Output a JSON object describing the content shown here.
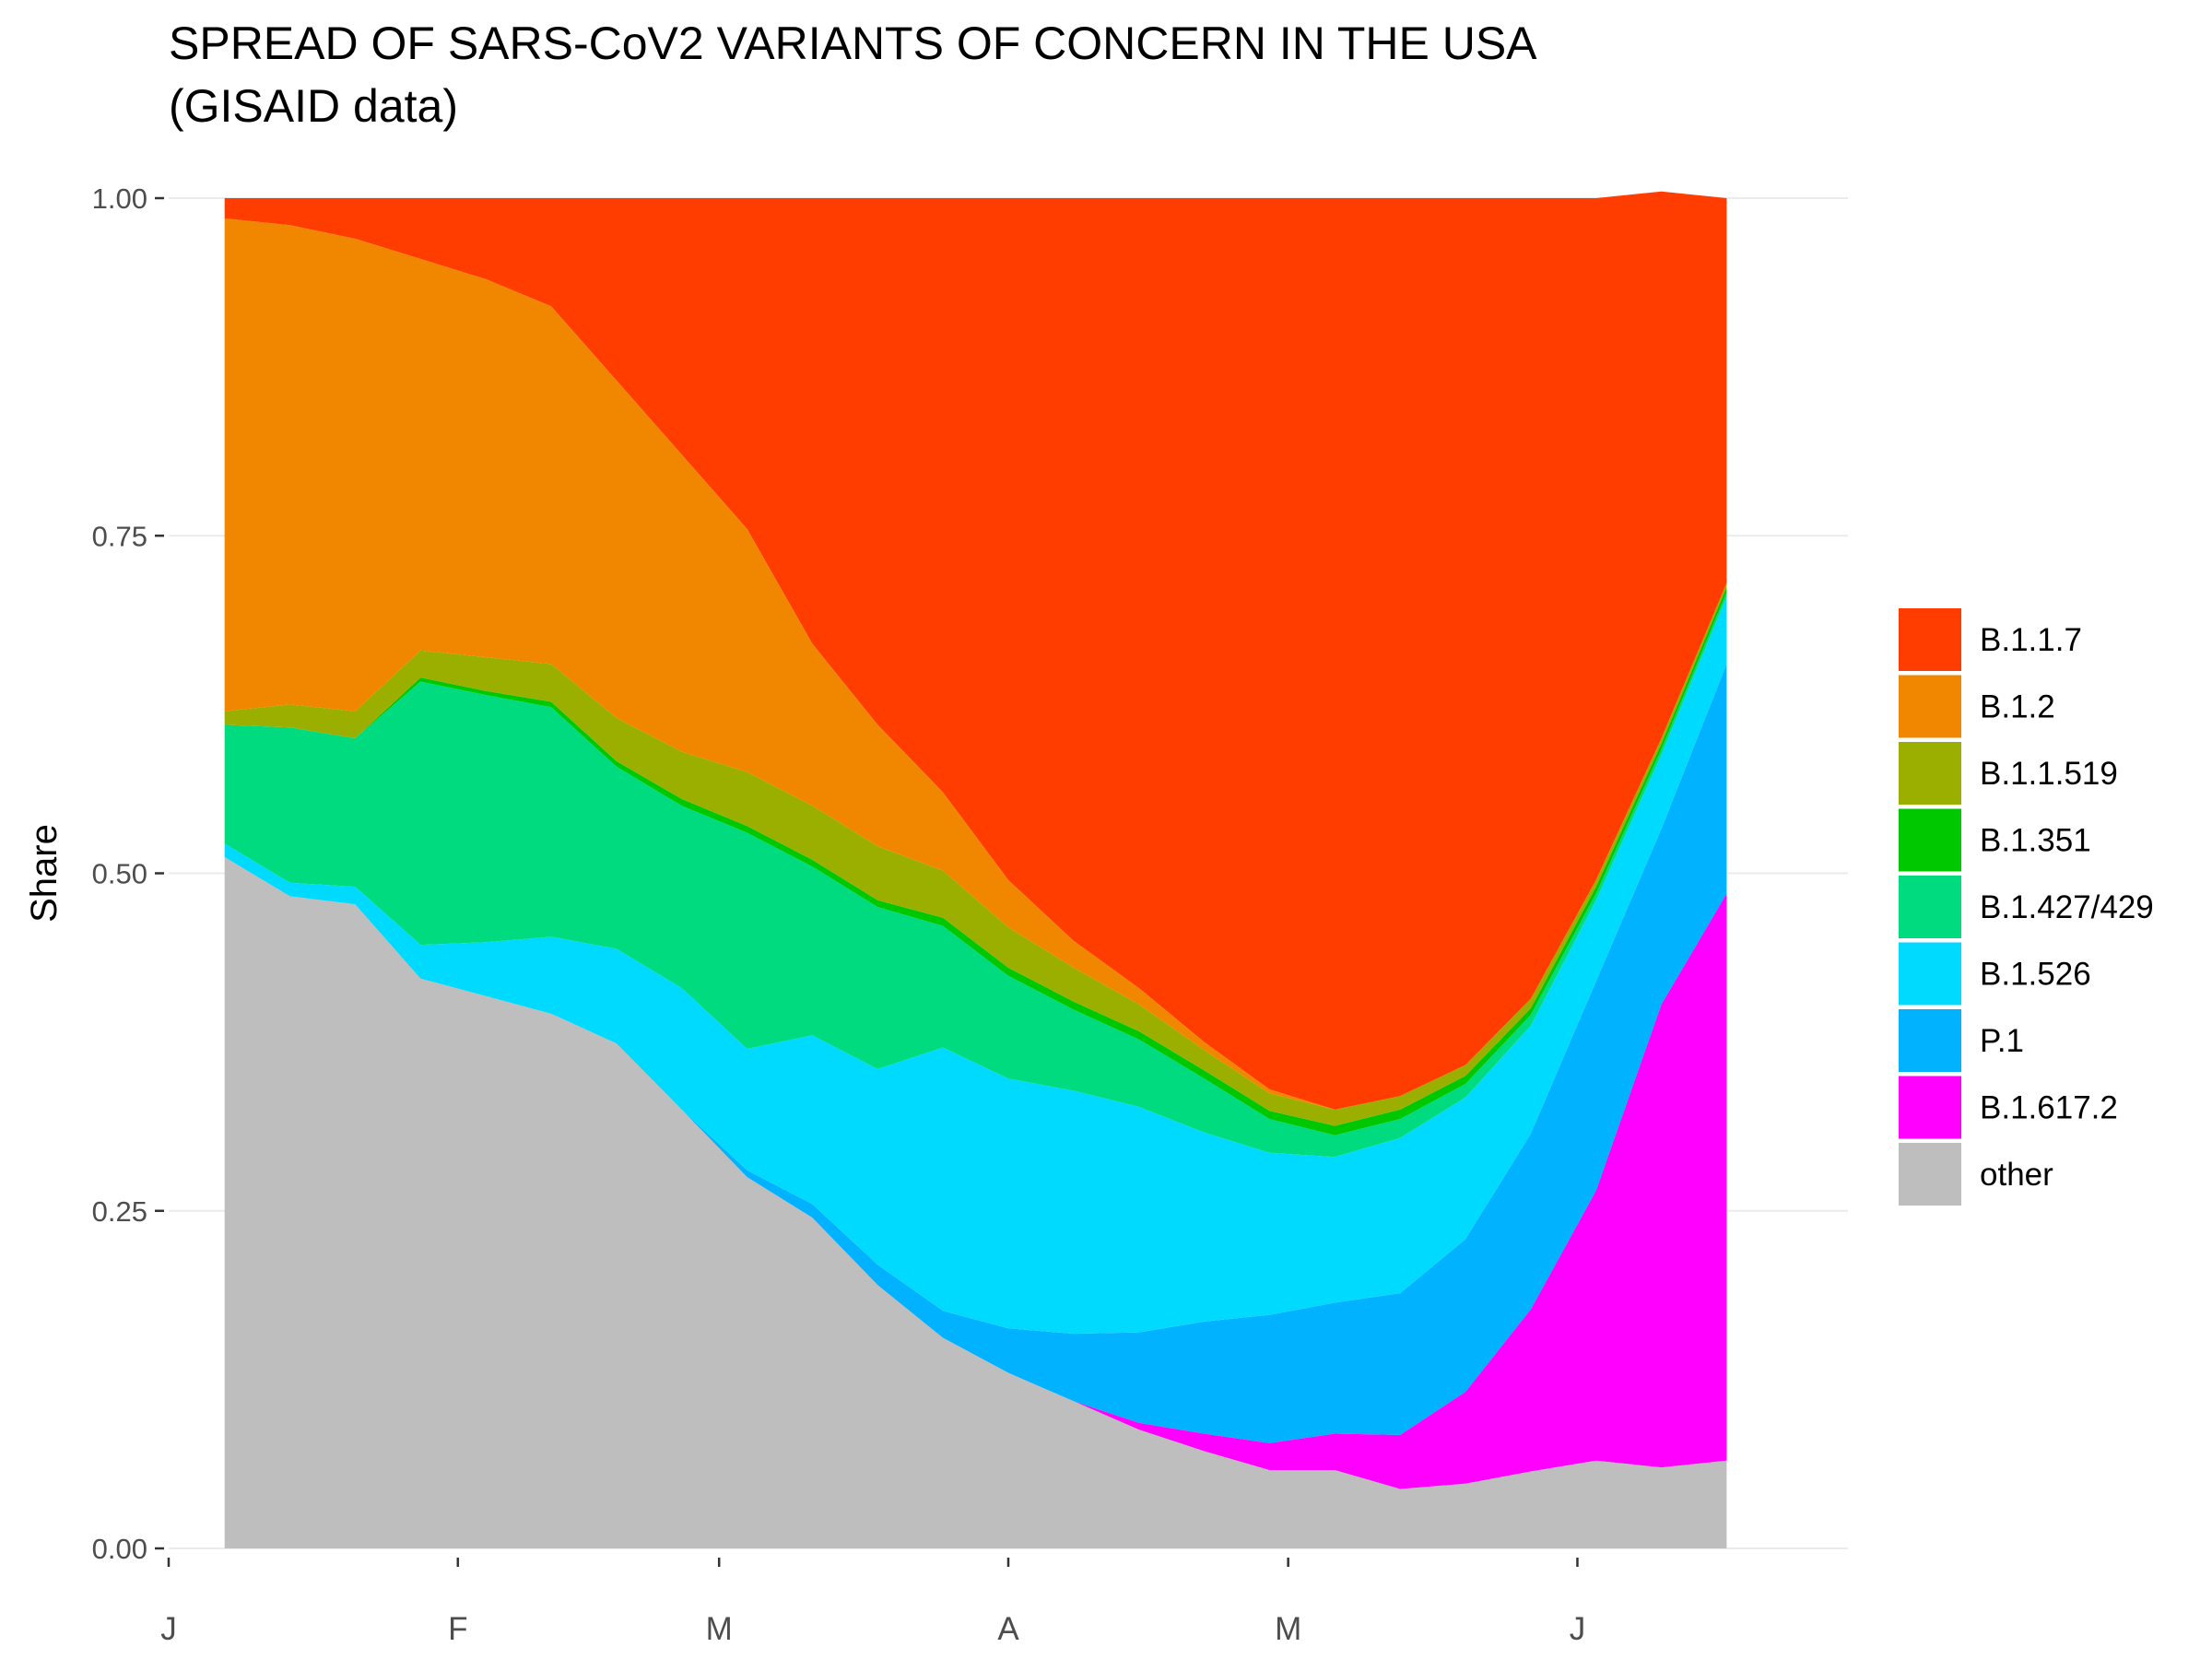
{
  "chart_data": {
    "type": "area",
    "stacked": true,
    "title": "SPREAD OF SARS-CoV2 VARIANTS OF CONCERN IN THE USA",
    "subtitle": "(GISAID data)",
    "xlabel": "",
    "ylabel": "Share",
    "xlim": [
      "2021-01-01",
      "2021-06-30"
    ],
    "ylim": [
      0,
      1
    ],
    "grid": true,
    "legend_position": "right",
    "x_ticks": [
      {
        "date": "2021-01-01",
        "label": "J"
      },
      {
        "date": "2021-02-01",
        "label": "F"
      },
      {
        "date": "2021-03-01",
        "label": "M"
      },
      {
        "date": "2021-04-01",
        "label": "A"
      },
      {
        "date": "2021-05-01",
        "label": "M"
      },
      {
        "date": "2021-06-01",
        "label": "J"
      }
    ],
    "y_ticks": [
      {
        "value": 0,
        "label": "0.00"
      },
      {
        "value": 0.25,
        "label": "0.25"
      },
      {
        "value": 0.5,
        "label": "0.50"
      },
      {
        "value": 0.75,
        "label": "0.75"
      },
      {
        "value": 1,
        "label": "1.00"
      }
    ],
    "x": [
      "2021-01-07",
      "2021-01-14",
      "2021-01-21",
      "2021-01-28",
      "2021-02-04",
      "2021-02-11",
      "2021-02-18",
      "2021-02-25",
      "2021-03-04",
      "2021-03-11",
      "2021-03-18",
      "2021-03-25",
      "2021-04-01",
      "2021-04-08",
      "2021-04-15",
      "2021-04-22",
      "2021-04-29",
      "2021-05-06",
      "2021-05-13",
      "2021-05-20",
      "2021-05-27",
      "2021-06-03",
      "2021-06-10",
      "2021-06-17"
    ],
    "stack_order": [
      "other",
      "B.1.617.2",
      "P.1",
      "B.1.526",
      "B.1.427/429",
      "B.1.351",
      "B.1.1.519",
      "B.1.2",
      "B.1.1.7"
    ],
    "series": [
      {
        "name": "B.1.1.7",
        "color": "#FF3D00",
        "values": [
          0.015,
          0.02,
          0.03,
          0.045,
          0.06,
          0.08,
          0.135,
          0.19,
          0.245,
          0.33,
          0.39,
          0.44,
          0.505,
          0.55,
          0.585,
          0.625,
          0.66,
          0.675,
          0.665,
          0.642,
          0.593,
          0.505,
          0.405,
          0.285
        ]
      },
      {
        "name": "B.1.2",
        "color": "#F18700",
        "values": [
          0.365,
          0.355,
          0.35,
          0.29,
          0.28,
          0.265,
          0.25,
          0.22,
          0.18,
          0.12,
          0.09,
          0.058,
          0.035,
          0.02,
          0.012,
          0.006,
          0.003,
          0,
          0,
          0,
          0,
          0,
          0,
          0
        ]
      },
      {
        "name": "B.1.1.519",
        "color": "#9AAF00",
        "values": [
          0.01,
          0.017,
          0.02,
          0.02,
          0.025,
          0.028,
          0.032,
          0.035,
          0.04,
          0.04,
          0.04,
          0.035,
          0.03,
          0.025,
          0.02,
          0.015,
          0.013,
          0.012,
          0.01,
          0.008,
          0.007,
          0.005,
          0.004,
          0.003
        ]
      },
      {
        "name": "B.1.351",
        "color": "#00C800",
        "values": [
          0,
          0,
          0,
          0.003,
          0.003,
          0.004,
          0.004,
          0.005,
          0.005,
          0.005,
          0.005,
          0.006,
          0.006,
          0.006,
          0.006,
          0.006,
          0.006,
          0.007,
          0.007,
          0.006,
          0.005,
          0.005,
          0.004,
          0.004
        ]
      },
      {
        "name": "B.1.427/429",
        "color": "#00DB80",
        "values": [
          0.088,
          0.115,
          0.11,
          0.195,
          0.183,
          0.17,
          0.135,
          0.135,
          0.16,
          0.125,
          0.12,
          0.09,
          0.076,
          0.06,
          0.05,
          0.04,
          0.025,
          0.016,
          0.014,
          0.01,
          0.008,
          0.005,
          0.004,
          0.003
        ]
      },
      {
        "name": "B.1.526",
        "color": "#00DAFF",
        "values": [
          0.01,
          0.01,
          0.013,
          0.025,
          0.04,
          0.057,
          0.07,
          0.09,
          0.09,
          0.125,
          0.145,
          0.195,
          0.185,
          0.18,
          0.167,
          0.14,
          0.12,
          0.108,
          0.115,
          0.105,
          0.08,
          0.06,
          0.055,
          0.05
        ]
      },
      {
        "name": "P.1",
        "color": "#00B2FF",
        "values": [
          0,
          0,
          0,
          0,
          0,
          0,
          0,
          0,
          0.005,
          0.01,
          0.015,
          0.02,
          0.033,
          0.05,
          0.067,
          0.083,
          0.095,
          0.097,
          0.105,
          0.113,
          0.13,
          0.155,
          0.13,
          0.17
        ]
      },
      {
        "name": "B.1.617.2",
        "color": "#FF00FF",
        "values": [
          0,
          0,
          0,
          0,
          0,
          0,
          0,
          0,
          0,
          0,
          0,
          0,
          0,
          0,
          0.005,
          0.013,
          0.02,
          0.027,
          0.04,
          0.068,
          0.12,
          0.2,
          0.343,
          0.42
        ]
      },
      {
        "name": "other",
        "color": "#BEBEBE",
        "values": [
          0.512,
          0.483,
          0.477,
          0.422,
          0.409,
          0.396,
          0.374,
          0.325,
          0.275,
          0.245,
          0.195,
          0.156,
          0.13,
          0.109,
          0.088,
          0.072,
          0.058,
          0.058,
          0.044,
          0.048,
          0.057,
          0.065,
          0.06,
          0.065
        ]
      }
    ]
  }
}
